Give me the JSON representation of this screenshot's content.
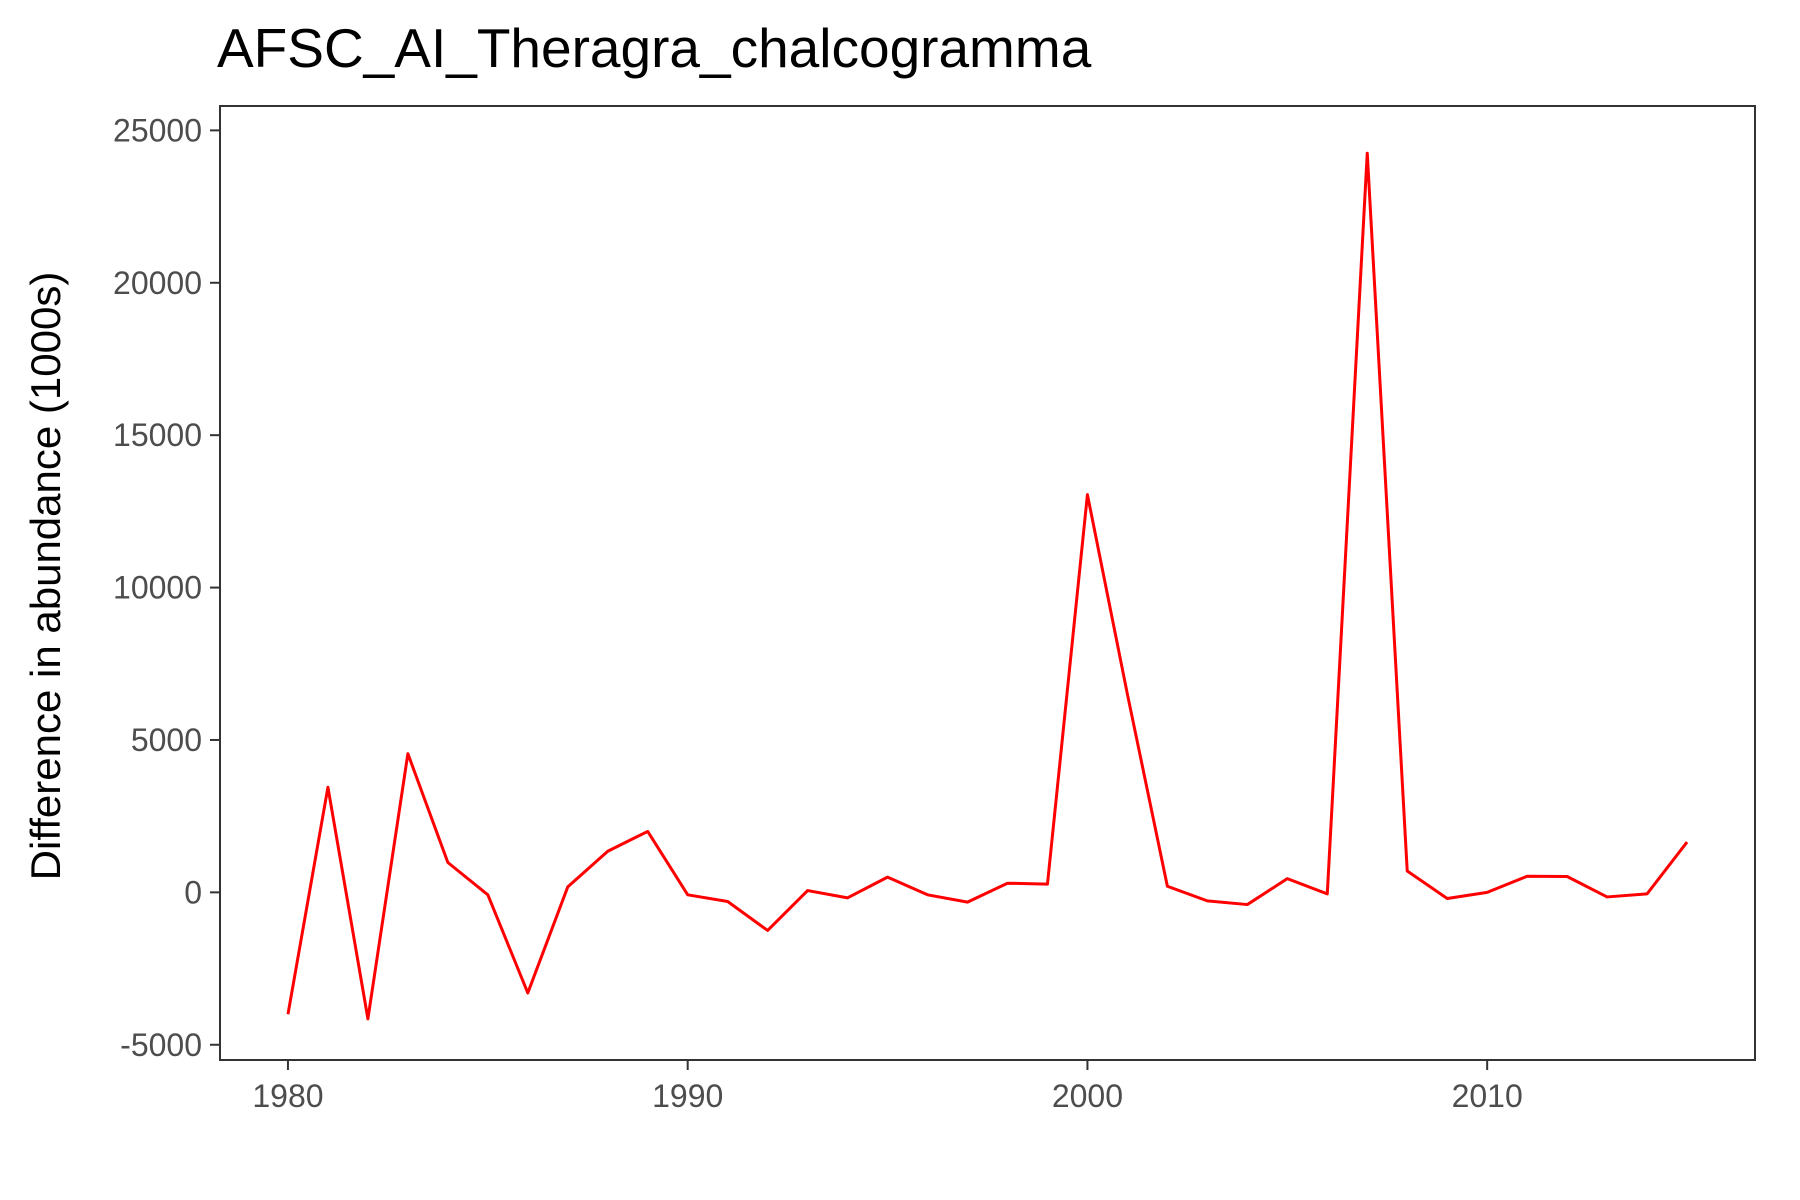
{
  "chart_data": {
    "type": "line",
    "title": "AFSC_AI_Theragra_chalcogramma",
    "xlabel": "",
    "ylabel": "Difference in abundance (1000s)",
    "xlim": [
      1978.3,
      2016.7
    ],
    "ylim": [
      -5500,
      25800
    ],
    "x_ticks": [
      1980,
      1990,
      2000,
      2010
    ],
    "x_tick_labels": [
      "1980",
      "1990",
      "2000",
      "2010"
    ],
    "y_ticks": [
      -5000,
      0,
      5000,
      10000,
      15000,
      20000,
      25000
    ],
    "y_tick_labels": [
      "-5000",
      "0",
      "5000",
      "10000",
      "15000",
      "20000",
      "25000"
    ],
    "grid": false,
    "legend": "none",
    "series": [
      {
        "color": "#ff0000",
        "x": [
          1980,
          1981,
          1982,
          1983,
          1984,
          1985,
          1986,
          1987,
          1988,
          1989,
          1990,
          1991,
          1992,
          1993,
          1994,
          1995,
          1996,
          1997,
          1998,
          1999,
          2000,
          2001,
          2002,
          2003,
          2004,
          2005,
          2006,
          2007,
          2008,
          2009,
          2010,
          2011,
          2012,
          2013,
          2014,
          2015
        ],
        "values": [
          -4000,
          3450,
          -4150,
          4550,
          980,
          -80,
          -3300,
          180,
          1350,
          2000,
          -80,
          -300,
          -1250,
          60,
          -180,
          500,
          -80,
          -320,
          300,
          270,
          13050,
          6500,
          200,
          -280,
          -400,
          450,
          -50,
          24250,
          700,
          -200,
          0,
          530,
          520,
          -150,
          -50,
          1650
        ]
      }
    ]
  }
}
